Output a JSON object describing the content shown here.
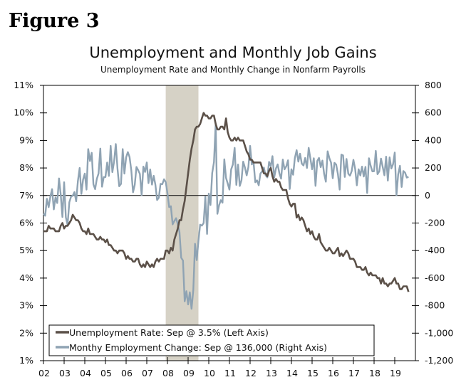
{
  "figure_label": "Figure 3",
  "chart_data": {
    "type": "line",
    "title": "Unemployment and Monthly Job Gains",
    "subtitle": "Unemployment Rate and Monthly Change in Nonfarm Payrolls",
    "x_start": "2002-01",
    "x_end": "2019-09",
    "xlim": [
      2002,
      2020
    ],
    "x_tick_labels": [
      "02",
      "03",
      "04",
      "05",
      "06",
      "07",
      "08",
      "09",
      "10",
      "11",
      "12",
      "13",
      "14",
      "15",
      "16",
      "17",
      "18",
      "19"
    ],
    "left_axis": {
      "ylim": [
        1,
        11
      ],
      "tick_labels": [
        "11%",
        "10%",
        "9%",
        "8%",
        "7%",
        "6%",
        "5%",
        "4%",
        "3%",
        "2%",
        "1%"
      ],
      "ticks": [
        11,
        10,
        9,
        8,
        7,
        6,
        5,
        4,
        3,
        2,
        1
      ]
    },
    "right_axis": {
      "ylim": [
        -1200,
        800
      ],
      "tick_labels": [
        "800",
        "600",
        "400",
        "200",
        "0",
        "-200",
        "-400",
        "-600",
        "-800",
        "-1,000",
        "-1,200"
      ],
      "ticks": [
        800,
        600,
        400,
        200,
        0,
        -200,
        -400,
        -600,
        -800,
        -1000,
        -1200
      ]
    },
    "zero_line": 0,
    "recession": {
      "start": "2007-12",
      "end": "2009-06",
      "color": "#d6d2c6"
    },
    "grid": false,
    "legend_placement": "bottom-left",
    "series": [
      {
        "name": "Unemployment Rate: Sep @ 3.5% (Left Axis)",
        "axis": "left",
        "color": "#5b5048",
        "values": [
          5.7,
          5.7,
          5.7,
          5.9,
          5.8,
          5.8,
          5.8,
          5.7,
          5.7,
          5.7,
          5.9,
          6.0,
          5.8,
          5.9,
          5.9,
          6.0,
          6.1,
          6.3,
          6.2,
          6.1,
          6.1,
          6.0,
          5.8,
          5.7,
          5.7,
          5.6,
          5.8,
          5.6,
          5.6,
          5.6,
          5.5,
          5.4,
          5.4,
          5.5,
          5.4,
          5.4,
          5.3,
          5.4,
          5.2,
          5.2,
          5.1,
          5.0,
          5.0,
          4.9,
          5.0,
          5.0,
          5.0,
          4.9,
          4.7,
          4.8,
          4.7,
          4.7,
          4.6,
          4.6,
          4.7,
          4.7,
          4.5,
          4.4,
          4.5,
          4.4,
          4.6,
          4.5,
          4.4,
          4.5,
          4.4,
          4.6,
          4.7,
          4.6,
          4.7,
          4.7,
          4.7,
          5.0,
          5.0,
          4.9,
          5.1,
          5.0,
          5.4,
          5.6,
          5.8,
          6.1,
          6.1,
          6.5,
          6.8,
          7.3,
          7.8,
          8.3,
          8.7,
          9.0,
          9.4,
          9.5,
          9.5,
          9.6,
          9.8,
          10.0,
          9.9,
          9.9,
          9.8,
          9.8,
          9.9,
          9.9,
          9.6,
          9.4,
          9.4,
          9.5,
          9.5,
          9.4,
          9.8,
          9.3,
          9.1,
          9.0,
          9.0,
          9.1,
          9.0,
          9.1,
          9.0,
          9.0,
          9.0,
          8.8,
          8.6,
          8.5,
          8.3,
          8.3,
          8.2,
          8.2,
          8.2,
          8.2,
          8.2,
          8.0,
          7.8,
          7.8,
          7.7,
          7.9,
          8.0,
          7.7,
          7.5,
          7.6,
          7.5,
          7.5,
          7.3,
          7.2,
          7.2,
          7.2,
          6.9,
          6.7,
          6.6,
          6.7,
          6.7,
          6.2,
          6.3,
          6.1,
          6.2,
          6.1,
          5.9,
          5.7,
          5.8,
          5.6,
          5.7,
          5.5,
          5.4,
          5.4,
          5.6,
          5.3,
          5.2,
          5.1,
          5.0,
          5.0,
          5.1,
          5.0,
          4.9,
          4.9,
          5.0,
          5.1,
          4.8,
          4.9,
          4.8,
          4.9,
          5.0,
          4.9,
          4.7,
          4.7,
          4.7,
          4.6,
          4.4,
          4.4,
          4.4,
          4.3,
          4.3,
          4.4,
          4.2,
          4.1,
          4.2,
          4.1,
          4.1,
          4.1,
          4.0,
          4.0,
          3.8,
          4.0,
          3.8,
          3.8,
          3.7,
          3.8,
          3.8,
          3.9,
          4.0,
          3.8,
          3.8,
          3.6,
          3.6,
          3.7,
          3.7,
          3.7,
          3.5
        ]
      },
      {
        "name": "Monthy Employment Change: Sep @ 136,000 (Right Axis)",
        "axis": "right",
        "color": "#8fa3b3",
        "values": [
          -132,
          -147,
          -24,
          -85,
          -7,
          46,
          -101,
          -14,
          -55,
          124,
          8,
          -156,
          96,
          -158,
          -213,
          -49,
          -9,
          -1,
          25,
          -42,
          104,
          200,
          12,
          116,
          159,
          43,
          337,
          250,
          310,
          81,
          46,
          121,
          159,
          341,
          64,
          134,
          134,
          240,
          142,
          360,
          170,
          246,
          374,
          195,
          67,
          84,
          337,
          159,
          277,
          315,
          280,
          182,
          23,
          77,
          207,
          184,
          157,
          2,
          210,
          171,
          240,
          90,
          189,
          79,
          143,
          78,
          -33,
          -16,
          85,
          82,
          118,
          97,
          17,
          -84,
          -78,
          -210,
          -185,
          -165,
          -209,
          -266,
          -452,
          -473,
          -769,
          -695,
          -791,
          -703,
          -823,
          -686,
          -351,
          -470,
          -329,
          -212,
          -219,
          -200,
          -7,
          -279,
          14,
          -69,
          163,
          243,
          522,
          -133,
          -70,
          -34,
          -52,
          263,
          128,
          87,
          43,
          189,
          225,
          346,
          77,
          225,
          69,
          110,
          246,
          202,
          146,
          207,
          360,
          226,
          243,
          96,
          110,
          74,
          159,
          176,
          203,
          146,
          132,
          244,
          211,
          286,
          130,
          197,
          226,
          162,
          122,
          261,
          190,
          212,
          256,
          47,
          190,
          151,
          272,
          329,
          246,
          304,
          232,
          218,
          273,
          200,
          346,
          269,
          190,
          271,
          70,
          251,
          273,
          206,
          254,
          157,
          100,
          321,
          272,
          239,
          125,
          237,
          225,
          153,
          43,
          297,
          291,
          135,
          265,
          158,
          144,
          178,
          259,
          195,
          74,
          190,
          145,
          210,
          138,
          208,
          18,
          271,
          216,
          175,
          176,
          324,
          155,
          175,
          268,
          208,
          147,
          282,
          108,
          277,
          196,
          227,
          312,
          1,
          153,
          216,
          62,
          178,
          166,
          130,
          136
        ]
      }
    ]
  }
}
